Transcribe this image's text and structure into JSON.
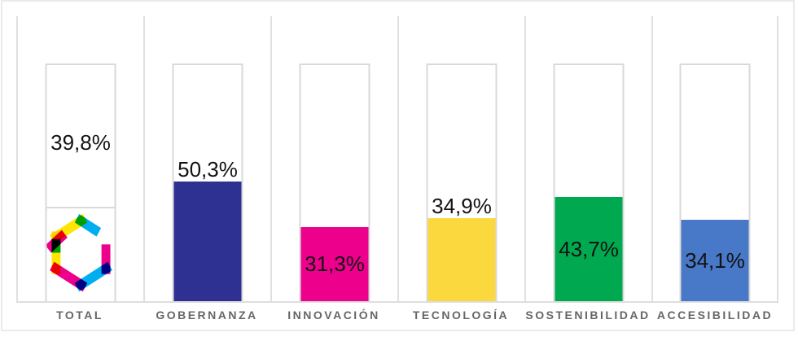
{
  "chart_data": {
    "type": "bar",
    "title": "",
    "xlabel": "",
    "ylabel": "",
    "categories": [
      "TOTAL",
      "GOBERNANZA",
      "INNOVACIÓN",
      "TECNOLOGÍA",
      "SOSTENIBILIDAD",
      "ACCESIBILIDAD"
    ],
    "values": [
      39.8,
      50.3,
      31.3,
      34.9,
      43.7,
      34.1
    ],
    "value_labels": [
      "39,8%",
      "50,3%",
      "31,3%",
      "34,9%",
      "43,7%",
      "34,1%"
    ],
    "ylim": [
      0,
      100
    ],
    "grid": false,
    "legend": false,
    "notes": "Each category drawn inside a 100% outlined column; TOTAL column shows fill level as a divider line with a logo in the filled zone"
  },
  "bars": [
    {
      "category": "TOTAL",
      "value": 39.8,
      "label": "39,8%",
      "color": null,
      "fill_style": "outline",
      "label_placement": "upper-center",
      "has_logo": true
    },
    {
      "category": "GOBERNANZA",
      "value": 50.3,
      "label": "50,3%",
      "color": "#2e3192",
      "fill_style": "solid",
      "label_placement": "above",
      "has_logo": false
    },
    {
      "category": "INNOVACIÓN",
      "value": 31.3,
      "label": "31,3%",
      "color": "#ec008c",
      "fill_style": "solid",
      "label_placement": "inside",
      "has_logo": false
    },
    {
      "category": "TECNOLOGÍA",
      "value": 34.9,
      "label": "34,9%",
      "color": "#fbd93e",
      "fill_style": "solid",
      "label_placement": "above",
      "has_logo": false
    },
    {
      "category": "SOSTENIBILIDAD",
      "value": 43.7,
      "label": "43,7%",
      "color": "#00a94f",
      "fill_style": "solid",
      "label_placement": "inside",
      "has_logo": false
    },
    {
      "category": "ACCESIBILIDAD",
      "value": 34.1,
      "label": "34,1%",
      "color": "#4878c8",
      "fill_style": "solid",
      "label_placement": "inside",
      "has_logo": false
    }
  ],
  "colors": {
    "frame": "#eaeaea",
    "column_separator": "#e0e0e0",
    "bar_outline": "#d9d9d9",
    "value_text": "#121212",
    "category_label": "#666666",
    "logo_cyan": "#00aeef",
    "logo_magenta": "#ec008c",
    "logo_yellow": "#ffe600"
  },
  "icons": {
    "brand_logo": "cmy-hexagon-ribbon-logo"
  }
}
